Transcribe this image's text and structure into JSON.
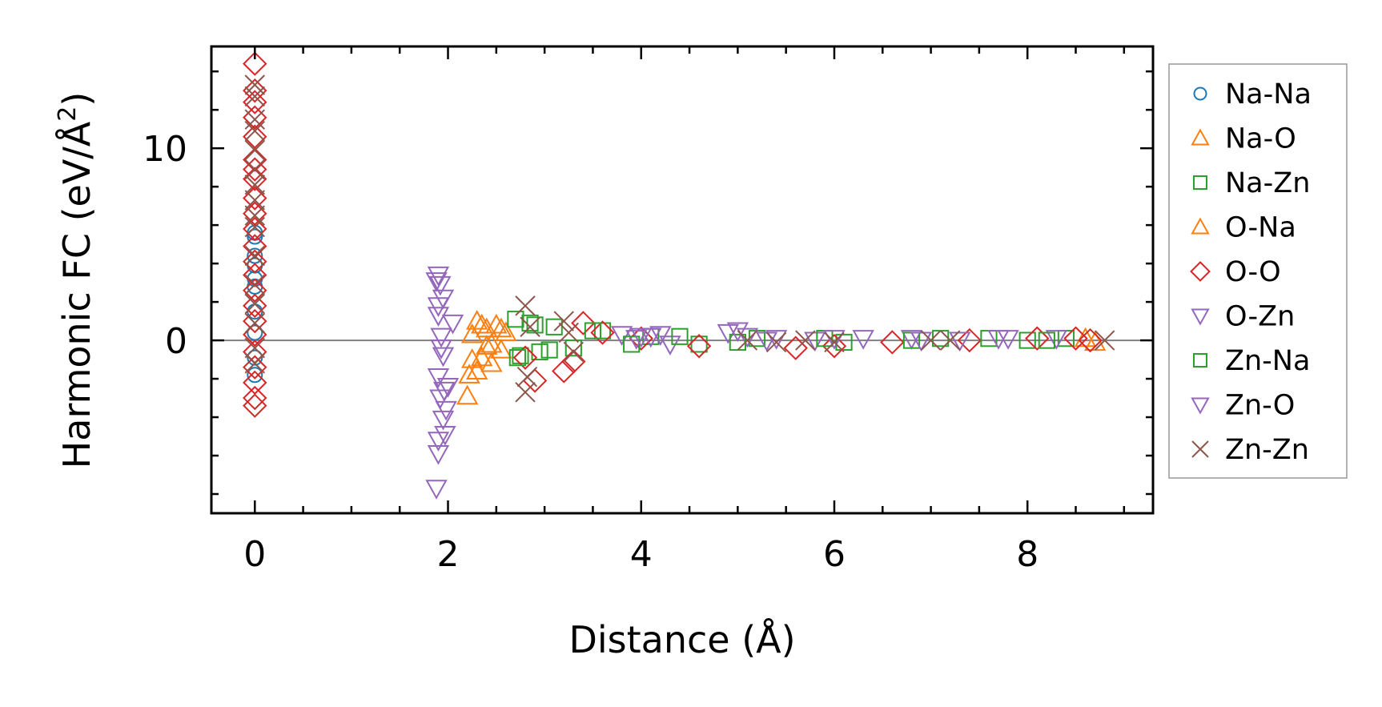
{
  "chart_data": {
    "type": "scatter",
    "title": "",
    "xlabel": "Distance (Å)",
    "ylabel": "Harmonic FC (eV/Å",
    "ylabel_sup": "2",
    "ylabel_end": ")",
    "xlim": [
      -0.45,
      9.3
    ],
    "ylim": [
      -9.0,
      15.3
    ],
    "x_ticks": [
      0,
      2,
      4,
      6,
      8
    ],
    "x_tick_labels": [
      "0",
      "2",
      "4",
      "6",
      "8"
    ],
    "y_ticks": [
      0,
      10
    ],
    "y_tick_labels": [
      "0",
      "10"
    ],
    "reference_line_y": 0,
    "legend_position": "outside-right",
    "series": [
      {
        "name": "Na-Na",
        "marker": "circle",
        "color": "#1f77b4",
        "points": [
          [
            0,
            5.6
          ],
          [
            0,
            5.4
          ],
          [
            0,
            4.4
          ],
          [
            0,
            3.9
          ],
          [
            0,
            3.2
          ],
          [
            0,
            1.5
          ],
          [
            0,
            0.4
          ],
          [
            0,
            -0.9
          ],
          [
            0,
            -1.8
          ],
          [
            0,
            2.8
          ]
        ]
      },
      {
        "name": "Na-O",
        "marker": "triangle-up",
        "color": "#ff7f0e",
        "points": [
          [
            2.2,
            -2.9
          ],
          [
            2.22,
            -1.8
          ],
          [
            2.25,
            0.3
          ],
          [
            2.3,
            1.0
          ],
          [
            2.35,
            -0.9
          ],
          [
            2.4,
            0.6
          ],
          [
            2.45,
            -1.2
          ],
          [
            2.5,
            0.8
          ],
          [
            2.55,
            -0.5
          ],
          [
            2.6,
            0.4
          ],
          [
            2.3,
            -1.6
          ],
          [
            2.4,
            -0.3
          ]
        ]
      },
      {
        "name": "Na-Zn",
        "marker": "square",
        "color": "#2ca02c",
        "points": [
          [
            2.7,
            1.1
          ],
          [
            2.75,
            -0.8
          ],
          [
            2.85,
            0.9
          ],
          [
            2.95,
            -0.6
          ],
          [
            3.1,
            0.7
          ],
          [
            3.3,
            -0.4
          ],
          [
            3.6,
            0.5
          ],
          [
            4.1,
            0.2
          ],
          [
            4.6,
            -0.2
          ],
          [
            5.2,
            0.1
          ],
          [
            6.1,
            -0.1
          ],
          [
            7.1,
            0.1
          ],
          [
            8.0,
            0.0
          ],
          [
            8.4,
            0.1
          ]
        ]
      },
      {
        "name": "O-Na",
        "marker": "triangle-up",
        "color": "#ff7f0e",
        "points": [
          [
            2.25,
            -1.0
          ],
          [
            2.35,
            0.8
          ],
          [
            2.45,
            -0.2
          ],
          [
            2.55,
            0.6
          ],
          [
            8.6,
            0.1
          ],
          [
            8.7,
            -0.1
          ]
        ]
      },
      {
        "name": "O-O",
        "marker": "diamond",
        "color": "#d62728",
        "points": [
          [
            0,
            14.4
          ],
          [
            0,
            13.0
          ],
          [
            0,
            12.4
          ],
          [
            0,
            11.6
          ],
          [
            0,
            10.6
          ],
          [
            0,
            9.4
          ],
          [
            0,
            8.9
          ],
          [
            0,
            8.4
          ],
          [
            0,
            7.4
          ],
          [
            0,
            6.6
          ],
          [
            0,
            5.8
          ],
          [
            0,
            4.9
          ],
          [
            0,
            4.1
          ],
          [
            0,
            3.4
          ],
          [
            0,
            2.6
          ],
          [
            0,
            1.8
          ],
          [
            0,
            1.0
          ],
          [
            0,
            0.3
          ],
          [
            0,
            -0.6
          ],
          [
            0,
            -1.4
          ],
          [
            0,
            -2.2
          ],
          [
            0,
            -3.0
          ],
          [
            0,
            -3.4
          ],
          [
            2.8,
            -0.9
          ],
          [
            2.9,
            -2.1
          ],
          [
            3.2,
            -1.6
          ],
          [
            3.3,
            -1.1
          ],
          [
            3.4,
            0.9
          ],
          [
            3.6,
            0.4
          ],
          [
            4.0,
            0.1
          ],
          [
            4.6,
            -0.3
          ],
          [
            5.6,
            -0.4
          ],
          [
            6.0,
            -0.3
          ],
          [
            6.6,
            -0.1
          ],
          [
            7.4,
            0.0
          ],
          [
            8.1,
            0.1
          ],
          [
            8.5,
            0.1
          ],
          [
            8.65,
            0.0
          ]
        ]
      },
      {
        "name": "O-Zn",
        "marker": "triangle-down",
        "color": "#9467bd",
        "points": [
          [
            1.9,
            3.4
          ],
          [
            1.92,
            2.9
          ],
          [
            1.95,
            2.2
          ],
          [
            1.9,
            1.3
          ],
          [
            1.93,
            0.2
          ],
          [
            1.95,
            -0.8
          ],
          [
            1.9,
            -1.9
          ],
          [
            1.92,
            -3.0
          ],
          [
            1.95,
            -4.1
          ],
          [
            1.97,
            -4.9
          ],
          [
            1.9,
            -5.9
          ],
          [
            1.88,
            -7.7
          ],
          [
            2.0,
            -2.4
          ],
          [
            2.05,
            0.9
          ],
          [
            3.8,
            0.3
          ],
          [
            3.95,
            0.1
          ],
          [
            4.1,
            0.2
          ],
          [
            4.3,
            -0.2
          ],
          [
            4.9,
            0.4
          ],
          [
            5.1,
            0.2
          ],
          [
            5.4,
            0.1
          ],
          [
            5.8,
            0.0
          ],
          [
            6.3,
            0.1
          ],
          [
            6.8,
            0.1
          ],
          [
            7.3,
            0.0
          ],
          [
            7.8,
            0.1
          ],
          [
            8.3,
            0.1
          ]
        ]
      },
      {
        "name": "Zn-Na",
        "marker": "square",
        "color": "#2ca02c",
        "points": [
          [
            2.72,
            -0.9
          ],
          [
            2.9,
            0.8
          ],
          [
            3.05,
            -0.5
          ],
          [
            3.5,
            0.5
          ],
          [
            3.9,
            -0.2
          ],
          [
            4.4,
            0.2
          ],
          [
            5.0,
            -0.1
          ],
          [
            5.9,
            0.1
          ],
          [
            6.8,
            0.0
          ],
          [
            7.6,
            0.1
          ],
          [
            8.2,
            0.0
          ]
        ]
      },
      {
        "name": "Zn-O",
        "marker": "triangle-down",
        "color": "#9467bd",
        "points": [
          [
            1.88,
            3.1
          ],
          [
            1.9,
            1.8
          ],
          [
            1.93,
            -0.4
          ],
          [
            1.96,
            -2.6
          ],
          [
            1.98,
            -3.6
          ],
          [
            1.9,
            -5.2
          ],
          [
            4.0,
            0.2
          ],
          [
            4.2,
            0.3
          ],
          [
            5.0,
            0.5
          ],
          [
            5.3,
            0.0
          ],
          [
            6.0,
            0.1
          ],
          [
            6.9,
            0.0
          ],
          [
            7.7,
            0.1
          ]
        ]
      },
      {
        "name": "Zn-Zn",
        "marker": "cross",
        "color": "#8c564b",
        "points": [
          [
            0,
            13.3
          ],
          [
            0,
            12.7
          ],
          [
            0,
            11.5
          ],
          [
            0,
            10.9
          ],
          [
            0,
            9.9
          ],
          [
            0,
            8.9
          ],
          [
            0,
            8.1
          ],
          [
            0,
            7.3
          ],
          [
            0,
            6.5
          ],
          [
            0,
            5.9
          ],
          [
            0,
            4.4
          ],
          [
            0,
            2.9
          ],
          [
            0,
            1.9
          ],
          [
            0,
            0.9
          ],
          [
            0,
            -0.4
          ],
          [
            0,
            -1.2
          ],
          [
            2.8,
            1.8
          ],
          [
            2.8,
            -2.7
          ],
          [
            2.82,
            -1.9
          ],
          [
            2.85,
            0.7
          ],
          [
            3.2,
            1.0
          ],
          [
            3.3,
            -0.6
          ],
          [
            3.25,
            0.4
          ],
          [
            5.1,
            0.0
          ],
          [
            5.4,
            -0.1
          ],
          [
            5.7,
            0.0
          ],
          [
            6.0,
            -0.1
          ],
          [
            7.0,
            0.0
          ],
          [
            7.2,
            0.0
          ],
          [
            8.8,
            0.0
          ]
        ]
      }
    ]
  }
}
